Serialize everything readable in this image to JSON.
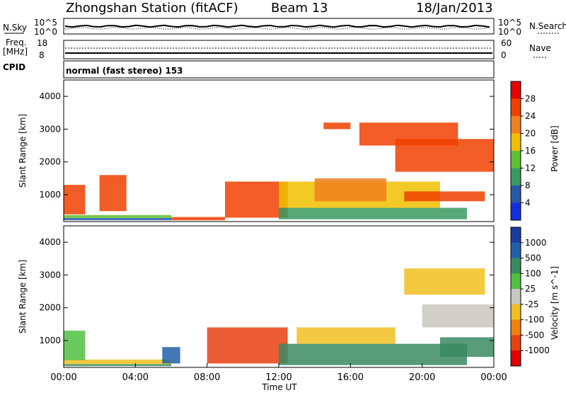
{
  "header": {
    "title": "Zhongshan Station (fitACF)",
    "beam": "Beam 13",
    "date": "18/Jan/2013"
  },
  "noise_panel": {
    "left_label": "N.Sky",
    "right_label": "N.Search",
    "left_ticks": [
      "10^5",
      "10^0"
    ],
    "right_ticks": [
      "10^5",
      "10^0"
    ]
  },
  "freq_panel": {
    "left_label_line1": "Freq.",
    "left_label_line2": "[MHz]",
    "right_label": "Nave",
    "left_ticks": [
      "18",
      "8"
    ],
    "right_ticks": [
      "60",
      "0"
    ]
  },
  "cpid": {
    "label": "CPID",
    "value": "normal (fast stereo) 153"
  },
  "colors": {
    "axis": "#000000",
    "background": "#ffffff"
  },
  "chart_data": [
    {
      "type": "heatmap",
      "quantity": "Power",
      "ylabel": "Slant Range [km]",
      "colorbar_label": "Power [dB]",
      "ylim": [
        180,
        4500
      ],
      "yticks": [
        1000,
        2000,
        3000,
        4000
      ],
      "colorbar_ticks": [
        "28",
        "24",
        "20",
        "16",
        "12",
        "8",
        "4"
      ],
      "colorbar_colors": [
        "#e60000",
        "#f04000",
        "#f08020",
        "#f0c000",
        "#60c030",
        "#3a9a60",
        "#2858a8",
        "#1030e0"
      ],
      "patches": [
        {
          "t": [
            0.0,
            6.0
          ],
          "r": [
            220,
            290
          ],
          "level": 6
        },
        {
          "t": [
            0.0,
            6.0
          ],
          "r": [
            290,
            380
          ],
          "level": 4
        },
        {
          "t": [
            0.0,
            1.2
          ],
          "r": [
            400,
            1300
          ],
          "level": 1
        },
        {
          "t": [
            2.0,
            3.5
          ],
          "r": [
            500,
            1600
          ],
          "level": 1
        },
        {
          "t": [
            6.0,
            9.0
          ],
          "r": [
            220,
            320
          ],
          "level": 1
        },
        {
          "t": [
            9.0,
            12.5
          ],
          "r": [
            300,
            1400
          ],
          "level": 1
        },
        {
          "t": [
            12.0,
            22.5
          ],
          "r": [
            250,
            600
          ],
          "level": 5
        },
        {
          "t": [
            12.0,
            21.0
          ],
          "r": [
            600,
            1400
          ],
          "level": 3
        },
        {
          "t": [
            14.0,
            18.0
          ],
          "r": [
            800,
            1500
          ],
          "level": 2
        },
        {
          "t": [
            18.5,
            24.0
          ],
          "r": [
            1700,
            2700
          ],
          "level": 1
        },
        {
          "t": [
            19.0,
            23.5
          ],
          "r": [
            800,
            1100
          ],
          "level": 1
        },
        {
          "t": [
            16.5,
            22.0
          ],
          "r": [
            2500,
            3200
          ],
          "level": 1
        },
        {
          "t": [
            14.5,
            16.0
          ],
          "r": [
            3000,
            3200
          ],
          "level": 1
        }
      ]
    },
    {
      "type": "heatmap",
      "quantity": "Velocity",
      "ylabel": "Slant Range [km]",
      "xlabel": "Time UT",
      "colorbar_label": "Velocity [m s^-1]",
      "ylim": [
        180,
        4500
      ],
      "yticks": [
        1000,
        2000,
        3000,
        4000
      ],
      "xticks": [
        "00:00",
        "04:00",
        "08:00",
        "12:00",
        "16:00",
        "20:00",
        "00:00"
      ],
      "xlim": [
        0,
        24
      ],
      "colorbar_ticks": [
        "1000",
        "500",
        "100",
        "25",
        "-25",
        "-100",
        "-500",
        "-1000"
      ],
      "colorbar_colors": [
        "#1a3aa0",
        "#2060a8",
        "#3a8a60",
        "#50c040",
        "#c8c8c0",
        "#f0c020",
        "#f08010",
        "#e84010",
        "#e00000"
      ],
      "patches": [
        {
          "t": [
            0.0,
            6.0
          ],
          "r": [
            220,
            280
          ],
          "level": 2
        },
        {
          "t": [
            0.0,
            6.0
          ],
          "r": [
            280,
            420
          ],
          "level": 5
        },
        {
          "t": [
            0.0,
            1.2
          ],
          "r": [
            400,
            1300
          ],
          "level": 3
        },
        {
          "t": [
            5.5,
            6.5
          ],
          "r": [
            300,
            800
          ],
          "level": 1
        },
        {
          "t": [
            8.0,
            12.5
          ],
          "r": [
            300,
            1400
          ],
          "level": 7
        },
        {
          "t": [
            12.0,
            22.5
          ],
          "r": [
            250,
            900
          ],
          "level": 2
        },
        {
          "t": [
            13.0,
            18.5
          ],
          "r": [
            900,
            1400
          ],
          "level": 5
        },
        {
          "t": [
            20.0,
            24.0
          ],
          "r": [
            1400,
            2100
          ],
          "level": 4
        },
        {
          "t": [
            19.0,
            23.5
          ],
          "r": [
            2400,
            3200
          ],
          "level": 5
        },
        {
          "t": [
            21.0,
            24.0
          ],
          "r": [
            500,
            1100
          ],
          "level": 2
        }
      ]
    }
  ]
}
